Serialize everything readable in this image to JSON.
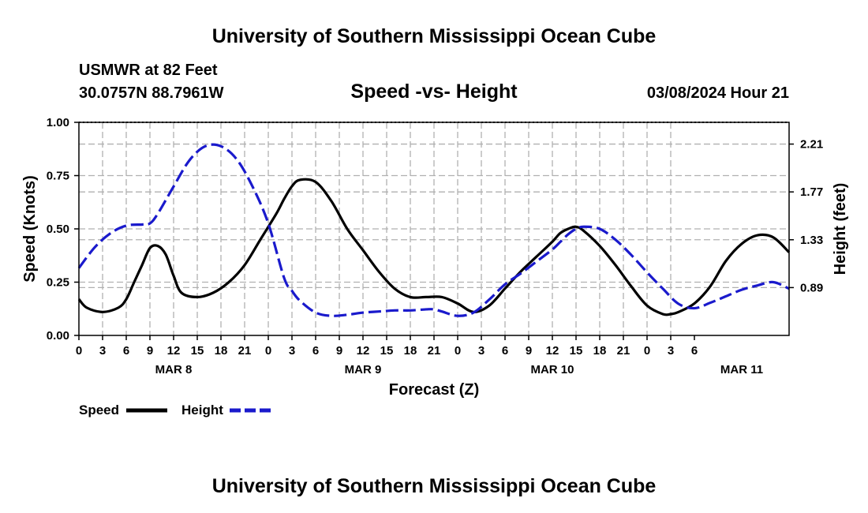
{
  "title": "University of Southern Mississippi Ocean Cube",
  "footer_title": "University of Southern Mississippi Ocean Cube",
  "station": "USMWR at 82 Feet",
  "location": "30.0757N  88.7961W",
  "subtitle": "Speed -vs- Height",
  "date": "03/08/2024 Hour 21",
  "colors": {
    "speed": "#000000",
    "height": "#1a1acc",
    "grid": "#b0b0b0"
  },
  "chart_data": {
    "type": "line",
    "title": "Speed -vs- Height",
    "xlabel": "Forecast (Z)",
    "ylabel": "Speed (Knots)",
    "y2label": "Height (feet)",
    "grid": true,
    "legend_position": "bottom-left",
    "x_range": [
      0,
      90
    ],
    "x_tick_labels": [
      "0",
      "3",
      "6",
      "9",
      "12",
      "15",
      "18",
      "21",
      "0",
      "3",
      "6",
      "9",
      "12",
      "15",
      "18",
      "21",
      "0",
      "3",
      "6",
      "9",
      "12",
      "15",
      "18",
      "21",
      "0",
      "3",
      "6"
    ],
    "day_labels": [
      {
        "x": 12,
        "label": "MAR 8"
      },
      {
        "x": 36,
        "label": "MAR 9"
      },
      {
        "x": 60,
        "label": "MAR 10"
      },
      {
        "x": 84,
        "label": "MAR 11"
      }
    ],
    "y_left": {
      "range": [
        0,
        1
      ],
      "ticks": [
        0,
        0.25,
        0.5,
        0.75,
        1.0
      ],
      "labels": [
        "0.00",
        "0.25",
        "0.50",
        "0.75",
        "1.00"
      ]
    },
    "y_right": {
      "range": [
        0.45,
        2.41
      ],
      "ticks": [
        0.89,
        1.33,
        1.77,
        2.21
      ],
      "labels": [
        "0.89",
        "1.33",
        "1.77",
        "2.21"
      ]
    },
    "series": [
      {
        "name": "Speed",
        "axis": "left",
        "style": "solid",
        "x": [
          0,
          1,
          3,
          5,
          6,
          7,
          8,
          9,
          10,
          11,
          12,
          13,
          15,
          17,
          19,
          21,
          23,
          25,
          26,
          27,
          28,
          30,
          32,
          34,
          36,
          38,
          40,
          42,
          44,
          46,
          48,
          50,
          52,
          54,
          56,
          58,
          60,
          61,
          62,
          63,
          64,
          66,
          68,
          70,
          72,
          74,
          75,
          76,
          78,
          80,
          82,
          84,
          86,
          88,
          90
        ],
        "y": [
          0.17,
          0.13,
          0.11,
          0.13,
          0.17,
          0.25,
          0.33,
          0.41,
          0.42,
          0.38,
          0.28,
          0.2,
          0.18,
          0.2,
          0.25,
          0.33,
          0.45,
          0.57,
          0.64,
          0.7,
          0.73,
          0.72,
          0.63,
          0.5,
          0.4,
          0.3,
          0.22,
          0.18,
          0.18,
          0.18,
          0.15,
          0.11,
          0.14,
          0.22,
          0.3,
          0.37,
          0.44,
          0.48,
          0.5,
          0.51,
          0.49,
          0.42,
          0.33,
          0.23,
          0.14,
          0.1,
          0.1,
          0.11,
          0.15,
          0.23,
          0.35,
          0.43,
          0.47,
          0.46,
          0.39
        ]
      },
      {
        "name": "Height",
        "axis": "right",
        "style": "dashed",
        "x": [
          0,
          2,
          4,
          6,
          8,
          9,
          10,
          12,
          14,
          16,
          18,
          20,
          22,
          24,
          26,
          27,
          28,
          30,
          32,
          34,
          36,
          38,
          40,
          42,
          44,
          45,
          46,
          48,
          50,
          52,
          54,
          56,
          58,
          60,
          61,
          62,
          63,
          64,
          66,
          68,
          70,
          72,
          74,
          76,
          78,
          80,
          82,
          84,
          86,
          88,
          90
        ],
        "y": [
          1.07,
          1.26,
          1.39,
          1.46,
          1.47,
          1.48,
          1.57,
          1.82,
          2.06,
          2.19,
          2.19,
          2.07,
          1.82,
          1.48,
          0.98,
          0.86,
          0.77,
          0.66,
          0.63,
          0.64,
          0.66,
          0.67,
          0.68,
          0.68,
          0.69,
          0.69,
          0.67,
          0.63,
          0.66,
          0.78,
          0.92,
          1.02,
          1.13,
          1.24,
          1.31,
          1.38,
          1.43,
          1.45,
          1.43,
          1.33,
          1.19,
          1.03,
          0.88,
          0.74,
          0.7,
          0.75,
          0.81,
          0.87,
          0.91,
          0.94,
          0.88
        ]
      }
    ]
  },
  "legend": [
    {
      "label": "Speed",
      "style": "solid"
    },
    {
      "label": "Height",
      "style": "dashed"
    }
  ]
}
